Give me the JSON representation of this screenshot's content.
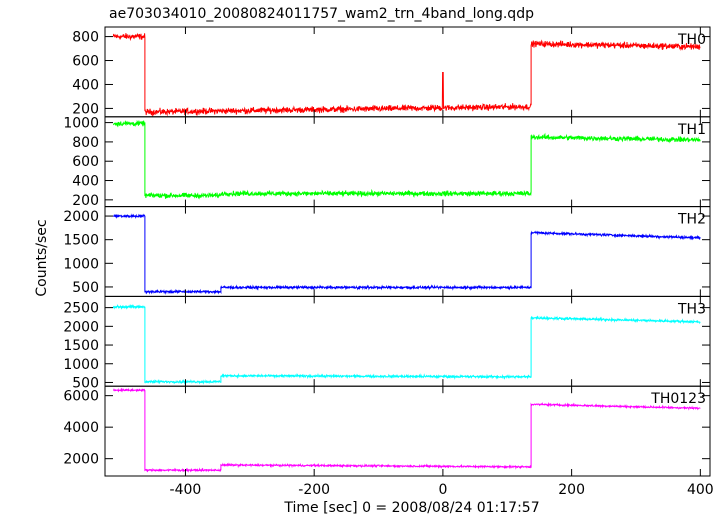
{
  "chart_data": {
    "type": "line",
    "title": "ae703034010_20080824011757_wam2_trn_4band_long.qdp",
    "xlabel": "Time [sec] 0 = 2008/08/24 01:17:57",
    "ylabel": "Counts/sec",
    "xlim": [
      -525,
      415
    ],
    "xticks": [
      -400,
      -200,
      0,
      200,
      400
    ],
    "series": [
      {
        "name": "TH0",
        "color": "#ff0000",
        "ylim": [
          130,
          880
        ],
        "yticks": [
          200,
          400,
          600,
          800
        ],
        "noise": 25,
        "segments": [
          {
            "x0": -512,
            "x1": -463,
            "y": 800
          },
          {
            "x0": -463,
            "x1": 137,
            "y0": 170,
            "y1": 215
          },
          {
            "x0": 137,
            "x1": 400,
            "y0": 740,
            "y1": 715
          }
        ],
        "spikes": [
          {
            "x": 0,
            "y": 500
          }
        ]
      },
      {
        "name": "TH1",
        "color": "#00ff00",
        "ylim": [
          130,
          1060
        ],
        "yticks": [
          200,
          400,
          600,
          800,
          1000
        ],
        "noise": 25,
        "segments": [
          {
            "x0": -512,
            "x1": -463,
            "y": 990
          },
          {
            "x0": -463,
            "x1": -345,
            "y": 245
          },
          {
            "x0": -345,
            "x1": 137,
            "y": 265
          },
          {
            "x0": 137,
            "x1": 400,
            "y0": 850,
            "y1": 820
          }
        ]
      },
      {
        "name": "TH2",
        "color": "#0000ff",
        "ylim": [
          300,
          2200
        ],
        "yticks": [
          500,
          1000,
          1500,
          2000
        ],
        "noise": 25,
        "segments": [
          {
            "x0": -512,
            "x1": -463,
            "y": 2000
          },
          {
            "x0": -463,
            "x1": -345,
            "y": 400
          },
          {
            "x0": -345,
            "x1": 137,
            "y": 490
          },
          {
            "x0": 137,
            "x1": 400,
            "y0": 1650,
            "y1": 1540
          }
        ]
      },
      {
        "name": "TH3",
        "color": "#00ffff",
        "ylim": [
          400,
          2800
        ],
        "yticks": [
          500,
          1000,
          1500,
          2000,
          2500
        ],
        "noise": 30,
        "segments": [
          {
            "x0": -512,
            "x1": -463,
            "y": 2520
          },
          {
            "x0": -463,
            "x1": -345,
            "y": 520
          },
          {
            "x0": -345,
            "x1": 137,
            "y0": 680,
            "y1": 650
          },
          {
            "x0": 137,
            "x1": 400,
            "y0": 2230,
            "y1": 2120
          }
        ]
      },
      {
        "name": "TH0123",
        "color": "#ff00ff",
        "ylim": [
          900,
          6600
        ],
        "yticks": [
          2000,
          4000,
          6000
        ],
        "noise": 55,
        "segments": [
          {
            "x0": -512,
            "x1": -463,
            "y": 6350
          },
          {
            "x0": -463,
            "x1": -345,
            "y": 1270
          },
          {
            "x0": -345,
            "x1": 137,
            "y0": 1600,
            "y1": 1480
          },
          {
            "x0": 137,
            "x1": 400,
            "y0": 5450,
            "y1": 5200
          }
        ]
      }
    ]
  }
}
